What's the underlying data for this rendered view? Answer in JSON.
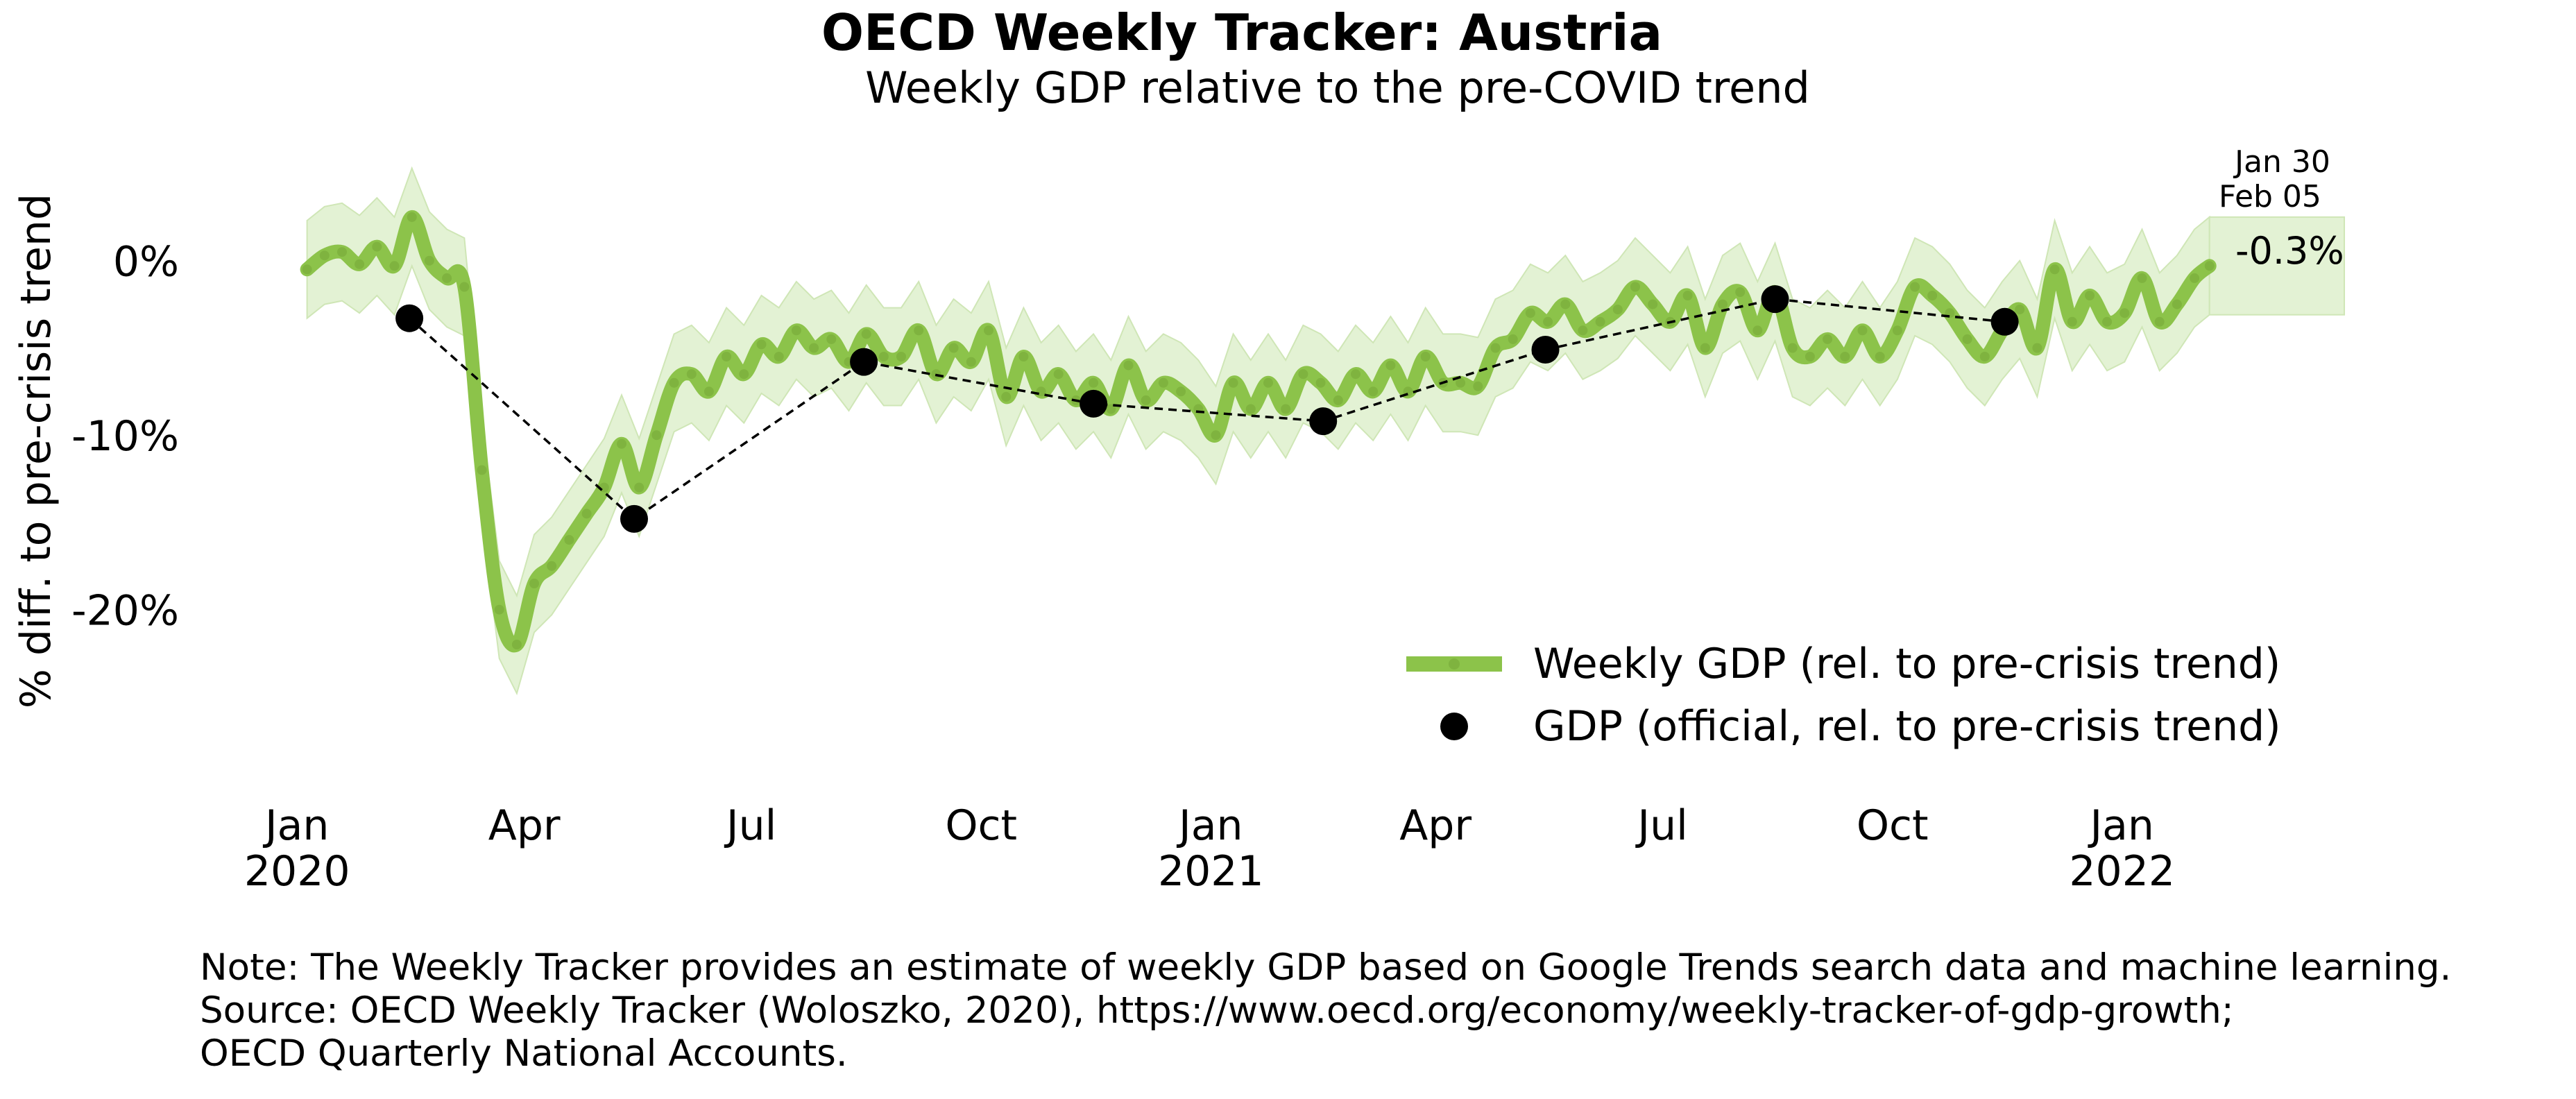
{
  "title": "OECD Weekly Tracker: Austria",
  "subtitle": "Weekly GDP relative to the pre-COVID trend",
  "colors": {
    "weekly_line": "#8cc34a",
    "band_fill": "#e3f2d4",
    "official": "#000000"
  },
  "annotations": {
    "date1": "Jan 30",
    "date2": "Feb 05",
    "last_value": "-0.3%"
  },
  "notes": [
    "Note: The Weekly Tracker provides an estimate of weekly GDP based on Google Trends search data and machine learning.",
    "Source: OECD Weekly Tracker (Woloszko, 2020), https://www.oecd.org/economy/weekly-tracker-of-gdp-growth;",
    "OECD Quarterly National Accounts."
  ],
  "chart_data": {
    "type": "line",
    "title": "OECD Weekly Tracker: Austria",
    "subtitle": "Weekly GDP relative to the pre-COVID trend",
    "ylabel": "% diff. to pre-crisis trend",
    "xlabel": "",
    "ylim": [
      -29,
      5
    ],
    "xlim": [
      "2019-12-20",
      "2022-04-10"
    ],
    "y_ticks": [
      {
        "value": 0,
        "label": "0%"
      },
      {
        "value": -10,
        "label": "-10%"
      },
      {
        "value": -20,
        "label": "-20%"
      }
    ],
    "x_ticks": [
      {
        "date": "2020-01-01",
        "label": [
          "Jan",
          "2020"
        ]
      },
      {
        "date": "2020-04-01",
        "label": [
          "Apr"
        ]
      },
      {
        "date": "2020-07-01",
        "label": [
          "Jul"
        ]
      },
      {
        "date": "2020-10-01",
        "label": [
          "Oct"
        ]
      },
      {
        "date": "2021-01-01",
        "label": [
          "Jan",
          "2021"
        ]
      },
      {
        "date": "2021-04-01",
        "label": [
          "Apr"
        ]
      },
      {
        "date": "2021-07-01",
        "label": [
          "Jul"
        ]
      },
      {
        "date": "2021-10-01",
        "label": [
          "Oct"
        ]
      },
      {
        "date": "2022-01-01",
        "label": [
          "Jan",
          "2022"
        ]
      }
    ],
    "legend": {
      "position": "lower-right",
      "entries": [
        {
          "label": "Weekly GDP (rel. to pre-crisis trend)",
          "kind": "line"
        },
        {
          "label": "GDP (official, rel. to pre-crisis trend)",
          "kind": "marker"
        }
      ]
    },
    "grid": false,
    "series": [
      {
        "name": "Weekly GDP (rel. to pre-crisis trend)",
        "kind": "line",
        "band_halfwidth": 2.8,
        "points": [
          [
            "2020-01-05",
            -0.5
          ],
          [
            "2020-01-12",
            0.3
          ],
          [
            "2020-01-19",
            0.5
          ],
          [
            "2020-01-26",
            -0.2
          ],
          [
            "2020-02-02",
            0.8
          ],
          [
            "2020-02-09",
            -0.3
          ],
          [
            "2020-02-16",
            2.5
          ],
          [
            "2020-02-23",
            0.0
          ],
          [
            "2020-03-01",
            -1.0
          ],
          [
            "2020-03-08",
            -1.5
          ],
          [
            "2020-03-15",
            -12.0
          ],
          [
            "2020-03-22",
            -20.0
          ],
          [
            "2020-03-29",
            -22.0
          ],
          [
            "2020-04-05",
            -18.5
          ],
          [
            "2020-04-12",
            -17.5
          ],
          [
            "2020-04-19",
            -16.0
          ],
          [
            "2020-04-26",
            -14.5
          ],
          [
            "2020-05-03",
            -13.0
          ],
          [
            "2020-05-10",
            -10.5
          ],
          [
            "2020-05-17",
            -13.0
          ],
          [
            "2020-05-24",
            -10.0
          ],
          [
            "2020-05-31",
            -7.0
          ],
          [
            "2020-06-07",
            -6.5
          ],
          [
            "2020-06-14",
            -7.5
          ],
          [
            "2020-06-21",
            -5.5
          ],
          [
            "2020-06-28",
            -6.5
          ],
          [
            "2020-07-05",
            -4.8
          ],
          [
            "2020-07-12",
            -5.5
          ],
          [
            "2020-07-19",
            -4.0
          ],
          [
            "2020-07-26",
            -5.0
          ],
          [
            "2020-08-02",
            -4.5
          ],
          [
            "2020-08-09",
            -5.8
          ],
          [
            "2020-08-16",
            -4.2
          ],
          [
            "2020-08-23",
            -5.5
          ],
          [
            "2020-08-30",
            -5.5
          ],
          [
            "2020-09-06",
            -4.0
          ],
          [
            "2020-09-13",
            -6.5
          ],
          [
            "2020-09-20",
            -5.0
          ],
          [
            "2020-09-27",
            -5.8
          ],
          [
            "2020-10-04",
            -4.0
          ],
          [
            "2020-10-11",
            -7.8
          ],
          [
            "2020-10-18",
            -5.5
          ],
          [
            "2020-10-25",
            -7.5
          ],
          [
            "2020-11-01",
            -6.5
          ],
          [
            "2020-11-08",
            -8.0
          ],
          [
            "2020-11-15",
            -7.0
          ],
          [
            "2020-11-22",
            -8.5
          ],
          [
            "2020-11-29",
            -6.0
          ],
          [
            "2020-12-06",
            -8.0
          ],
          [
            "2020-12-13",
            -7.0
          ],
          [
            "2020-12-20",
            -7.5
          ],
          [
            "2020-12-27",
            -8.5
          ],
          [
            "2021-01-03",
            -10.0
          ],
          [
            "2021-01-10",
            -7.0
          ],
          [
            "2021-01-17",
            -8.5
          ],
          [
            "2021-01-24",
            -7.0
          ],
          [
            "2021-01-31",
            -8.5
          ],
          [
            "2021-02-07",
            -6.5
          ],
          [
            "2021-02-14",
            -7.0
          ],
          [
            "2021-02-21",
            -8.0
          ],
          [
            "2021-02-28",
            -6.5
          ],
          [
            "2021-03-07",
            -7.5
          ],
          [
            "2021-03-14",
            -6.0
          ],
          [
            "2021-03-21",
            -7.5
          ],
          [
            "2021-03-28",
            -5.5
          ],
          [
            "2021-04-04",
            -7.0
          ],
          [
            "2021-04-11",
            -7.0
          ],
          [
            "2021-04-18",
            -7.2
          ],
          [
            "2021-04-25",
            -5.0
          ],
          [
            "2021-05-02",
            -4.5
          ],
          [
            "2021-05-09",
            -3.0
          ],
          [
            "2021-05-16",
            -3.5
          ],
          [
            "2021-05-23",
            -2.5
          ],
          [
            "2021-05-30",
            -4.0
          ],
          [
            "2021-06-06",
            -3.5
          ],
          [
            "2021-06-13",
            -2.8
          ],
          [
            "2021-06-20",
            -1.5
          ],
          [
            "2021-06-27",
            -2.5
          ],
          [
            "2021-07-04",
            -3.5
          ],
          [
            "2021-07-11",
            -2.0
          ],
          [
            "2021-07-18",
            -5.0
          ],
          [
            "2021-07-25",
            -2.5
          ],
          [
            "2021-08-01",
            -1.8
          ],
          [
            "2021-08-08",
            -4.0
          ],
          [
            "2021-08-15",
            -1.8
          ],
          [
            "2021-08-22",
            -5.0
          ],
          [
            "2021-08-29",
            -5.5
          ],
          [
            "2021-09-05",
            -4.5
          ],
          [
            "2021-09-12",
            -5.5
          ],
          [
            "2021-09-19",
            -4.0
          ],
          [
            "2021-09-26",
            -5.5
          ],
          [
            "2021-10-03",
            -4.0
          ],
          [
            "2021-10-10",
            -1.5
          ],
          [
            "2021-10-17",
            -2.0
          ],
          [
            "2021-10-24",
            -3.0
          ],
          [
            "2021-10-31",
            -4.5
          ],
          [
            "2021-11-07",
            -5.5
          ],
          [
            "2021-11-14",
            -4.0
          ],
          [
            "2021-11-21",
            -2.8
          ],
          [
            "2021-11-28",
            -5.0
          ],
          [
            "2021-12-05",
            -0.5
          ],
          [
            "2021-12-12",
            -3.5
          ],
          [
            "2021-12-19",
            -2.0
          ],
          [
            "2021-12-26",
            -3.5
          ],
          [
            "2022-01-02",
            -3.0
          ],
          [
            "2022-01-09",
            -1.0
          ],
          [
            "2022-01-16",
            -3.5
          ],
          [
            "2022-01-23",
            -2.5
          ],
          [
            "2022-01-30",
            -1.0
          ],
          [
            "2022-02-05",
            -0.3
          ]
        ]
      },
      {
        "name": "GDP (official, rel. to pre-crisis trend)",
        "kind": "marker",
        "points": [
          [
            "2020-02-15",
            -3.3
          ],
          [
            "2020-05-15",
            -14.8
          ],
          [
            "2020-08-15",
            -5.8
          ],
          [
            "2020-11-15",
            -8.2
          ],
          [
            "2021-02-15",
            -9.2
          ],
          [
            "2021-05-15",
            -5.1
          ],
          [
            "2021-08-15",
            -2.2
          ],
          [
            "2021-11-15",
            -3.5
          ]
        ]
      }
    ],
    "band_end": {
      "from": "2022-02-05",
      "to": "2022-03-31"
    }
  }
}
